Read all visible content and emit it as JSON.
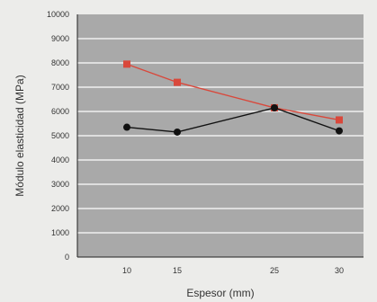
{
  "chart_data": {
    "type": "line",
    "xlabel": "Espesor (mm)",
    "ylabel": "Módulo elasticidad (MPa)",
    "categories": [
      "10",
      "15",
      "25",
      "30"
    ],
    "ylim": [
      0,
      10000
    ],
    "yticks": [
      "0",
      "1000",
      "2000",
      "3000",
      "4000",
      "5000",
      "6000",
      "7000",
      "8000",
      "9000",
      "10000"
    ],
    "grid": true,
    "series": [
      {
        "color": "#d9483b",
        "marker": "square",
        "values": [
          7950,
          7200,
          6150,
          5650
        ]
      },
      {
        "color": "#111111",
        "marker": "circle",
        "values": [
          5350,
          5150,
          6150,
          5200
        ]
      }
    ],
    "colors": {
      "plot_background": "#a9a9a9",
      "gridline": "#ffffff"
    }
  }
}
